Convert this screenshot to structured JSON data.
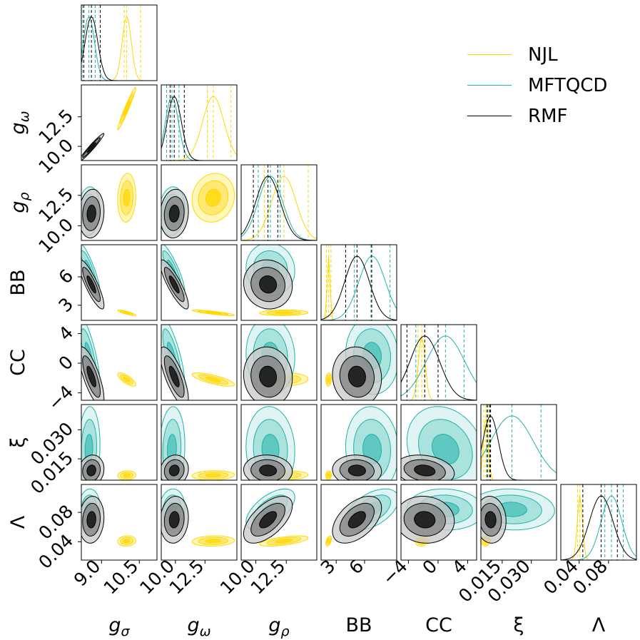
{
  "chart_data": {
    "type": "corner",
    "title": "",
    "parameters": [
      {
        "id": "gs",
        "label": "g_σ",
        "sym": "g",
        "sub": "σ",
        "range": [
          8.2,
          11.2
        ],
        "ticks": [
          "9.0",
          "10.5"
        ],
        "tickv": [
          9.0,
          10.5
        ],
        "hasLeftAxis": false
      },
      {
        "id": "gw",
        "label": "g_ω",
        "sym": "g",
        "sub": "ω",
        "range": [
          8.8,
          15.2
        ],
        "ticks": [
          "10.0",
          "12.5"
        ],
        "tickv": [
          10.0,
          12.5
        ],
        "hasLeftAxis": true
      },
      {
        "id": "gr",
        "label": "g_ρ",
        "sym": "g",
        "sub": "ρ",
        "range": [
          8.8,
          15.0
        ],
        "ticks": [
          "10.0",
          "12.5"
        ],
        "tickv": [
          10.0,
          12.5
        ],
        "hasLeftAxis": true
      },
      {
        "id": "bb",
        "label": "BB",
        "sym": "BB",
        "sub": "",
        "range": [
          1.4,
          9.4
        ],
        "ticks": [
          "3",
          "6"
        ],
        "tickv": [
          3,
          6
        ],
        "hasLeftAxis": true
      },
      {
        "id": "cc",
        "label": "CC",
        "sym": "CC",
        "sub": "",
        "range": [
          -5.0,
          5.2
        ],
        "ticks": [
          "−4",
          "0",
          "4"
        ],
        "tickv": [
          -4,
          0,
          4
        ],
        "hasLeftAxis": true
      },
      {
        "id": "xi",
        "label": "ξ",
        "sym": "ξ",
        "sub": "",
        "range": [
          0.004,
          0.043
        ],
        "ticks": [
          "0.015",
          "0.030"
        ],
        "tickv": [
          0.015,
          0.03
        ],
        "hasLeftAxis": true
      },
      {
        "id": "lam",
        "label": "Λ",
        "sym": "Λ",
        "sub": "",
        "range": [
          0.015,
          0.118
        ],
        "ticks": [
          "0.04",
          "0.08"
        ],
        "tickv": [
          0.04,
          0.08
        ],
        "hasLeftAxis": true
      }
    ],
    "series": [
      {
        "name": "NJL",
        "color": "#FFD700",
        "mean": [
          10.0,
          13.2,
          12.3,
          2.2,
          -2.2,
          0.0065,
          0.041
        ],
        "sd": [
          0.18,
          0.9,
          1.0,
          0.15,
          0.45,
          0.0012,
          0.0035
        ],
        "quantiles": [
          [
            9.9,
            10.55
          ],
          [
            12.7,
            14.7
          ],
          [
            10.7,
            14.3
          ],
          [
            1.95,
            2.45
          ],
          [
            -2.7,
            -1.8
          ],
          [
            0.0055,
            0.0082
          ],
          [
            0.038,
            0.045
          ]
        ]
      },
      {
        "name": "MFTQCD",
        "color": "#20B2AA",
        "mean": [
          8.5,
          9.7,
          11.2,
          6.8,
          1.0,
          0.02,
          0.084
        ],
        "sd": [
          0.22,
          0.55,
          1.0,
          1.4,
          2.6,
          0.011,
          0.014
        ],
        "quantiles": [
          [
            8.25,
            8.75
          ],
          [
            9.25,
            10.3
          ],
          [
            10.2,
            12.0
          ],
          [
            4.9,
            8.7
          ],
          [
            -3.0,
            3.5
          ],
          [
            0.0075,
            0.035
          ],
          [
            0.075,
            0.1
          ]
        ]
      },
      {
        "name": "RMF",
        "color": "#000000",
        "mean": [
          8.6,
          9.9,
          11.0,
          5.2,
          -1.8,
          0.009,
          0.07
        ],
        "sd": [
          0.25,
          0.6,
          1.0,
          1.3,
          2.0,
          0.004,
          0.016
        ],
        "quantiles": [
          [
            8.3,
            8.95
          ],
          [
            9.55,
            10.75
          ],
          [
            9.8,
            11.8
          ],
          [
            4.0,
            6.7
          ],
          [
            -4.2,
            0.0
          ],
          [
            0.0072,
            0.0085
          ],
          [
            0.045,
            0.092
          ]
        ]
      }
    ],
    "legend": {
      "position": "top-right"
    }
  }
}
